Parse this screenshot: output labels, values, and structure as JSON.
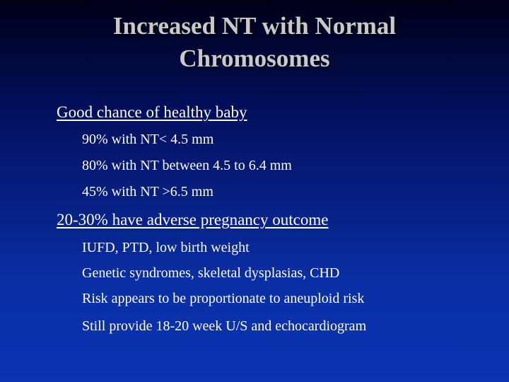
{
  "slide": {
    "title_line1": "Increased NT with Normal",
    "title_line2": "Chromosomes",
    "sections": [
      {
        "heading": "Good chance of healthy baby",
        "items": [
          "90% with NT< 4.5 mm",
          "80% with NT between 4.5 to 6.4 mm",
          "45% with NT >6.5 mm"
        ]
      },
      {
        "heading": "20-30% have adverse pregnancy outcome",
        "items": [
          "IUFD, PTD, low birth weight",
          "Genetic syndromes, skeletal dysplasias, CHD",
          "Risk appears to be proportionate to aneuploid risk",
          "Still provide 18-20 week U/S and echocardiogram"
        ]
      }
    ]
  },
  "colors": {
    "background_top": "#000017",
    "background_bottom": "#0b33b2",
    "title": "#c9c9cc",
    "text": "#ffffff"
  }
}
